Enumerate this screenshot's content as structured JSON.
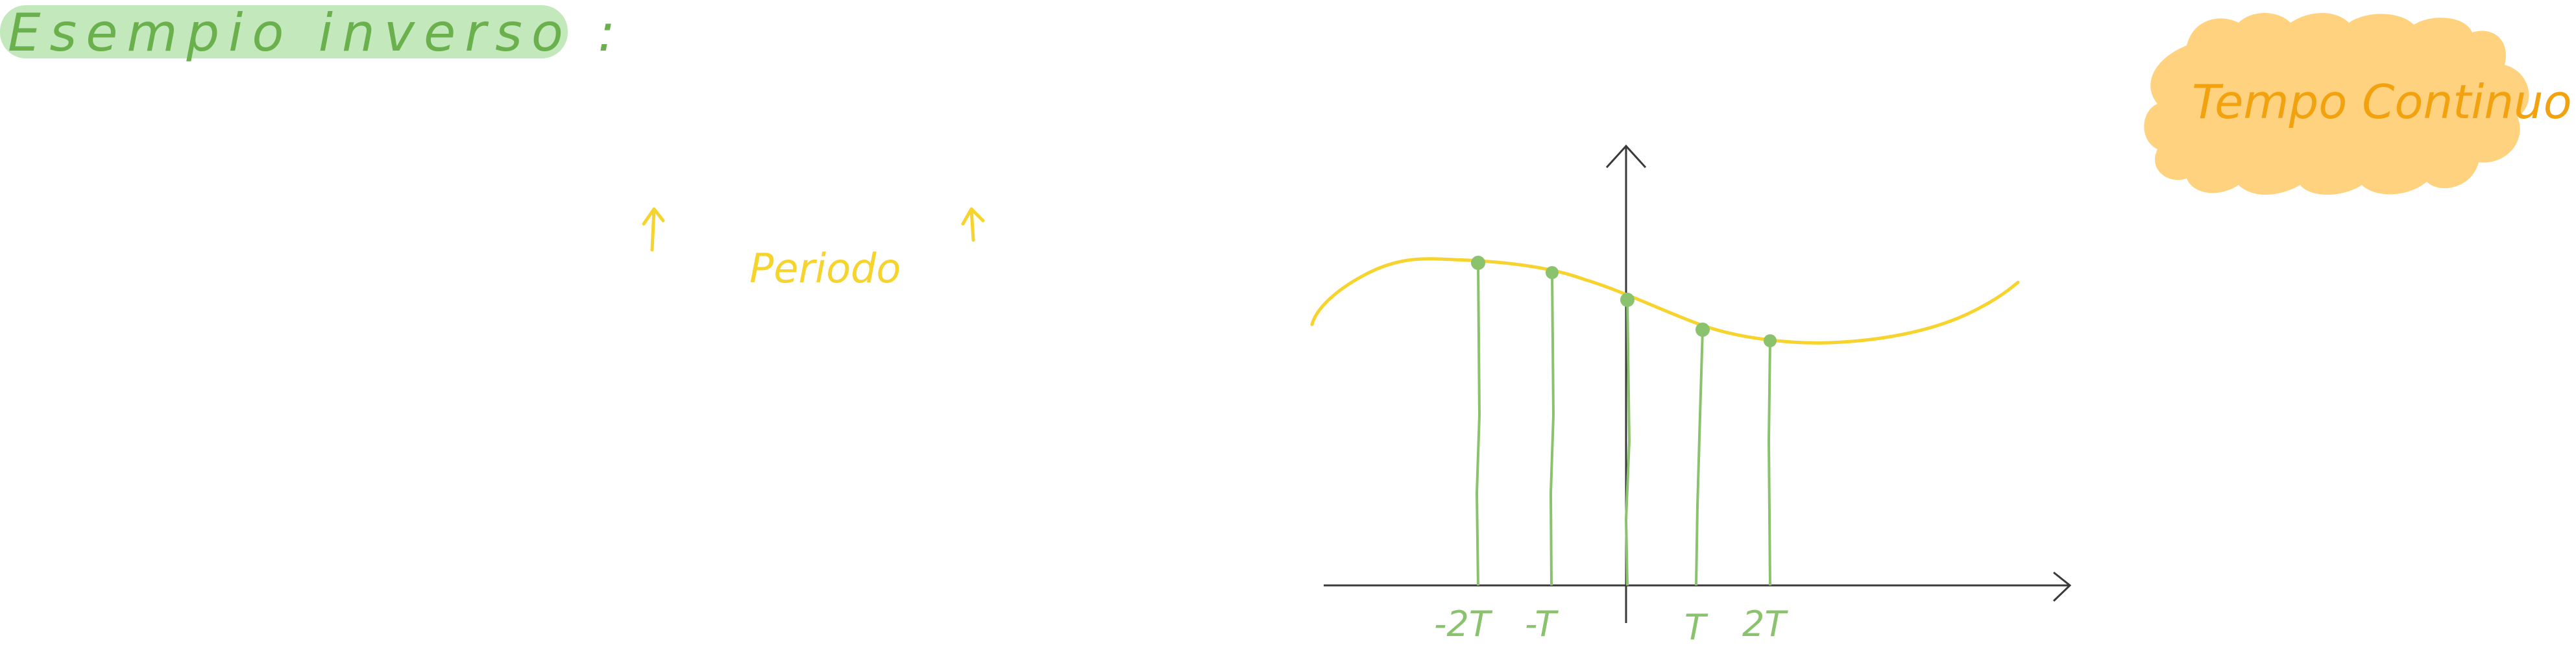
{
  "title": "Esempio inverso :",
  "badge": "Tempo Continuo",
  "note": "Periodo",
  "tick_labels": [
    "-2T",
    "-T",
    "T",
    "2T"
  ],
  "colors": {
    "title_text": "#6ab04c",
    "title_highlight": "#c2e8bb",
    "badge_cloud": "#ffd27f",
    "badge_text": "#f2a20e",
    "note": "#f6d32d",
    "curve": "#f6d32d",
    "samples": "#8bc26d",
    "sample_points": "#8bc26d",
    "axes": "#3a3a3a"
  }
}
